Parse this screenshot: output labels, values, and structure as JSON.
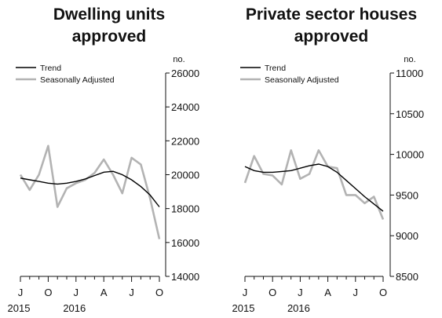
{
  "chart_data": [
    {
      "type": "line",
      "title_lines": [
        "Dwelling units",
        "approved"
      ],
      "unit": "no.",
      "ylim": [
        14000,
        26000
      ],
      "yticks": [
        26000,
        24000,
        22000,
        20000,
        18000,
        16000,
        14000
      ],
      "xticks": [
        {
          "label": "J",
          "year": "2015",
          "index": 0
        },
        {
          "label": "O",
          "year": "",
          "index": 3
        },
        {
          "label": "J",
          "year": "2016",
          "index": 6
        },
        {
          "label": "A",
          "year": "",
          "index": 9
        },
        {
          "label": "J",
          "year": "",
          "index": 12
        },
        {
          "label": "O",
          "year": "",
          "index": 15
        }
      ],
      "legend": [
        "Trend",
        "Seasonally Adjusted"
      ],
      "legend_position": "top-left",
      "series": [
        {
          "name": "Trend",
          "values": [
            19800,
            19700,
            19600,
            19500,
            19450,
            19500,
            19600,
            19750,
            19950,
            20150,
            20200,
            20000,
            19700,
            19300,
            18800,
            18100
          ]
        },
        {
          "name": "Seasonally Adjusted",
          "values": [
            20000,
            19100,
            20000,
            21700,
            18100,
            19200,
            19500,
            19700,
            20100,
            20900,
            20000,
            18900,
            21000,
            20600,
            18600,
            16200
          ]
        }
      ],
      "colors": {
        "Trend": "#000000",
        "Seasonally Adjusted": "#b3b3b3"
      }
    },
    {
      "type": "line",
      "title_lines": [
        "Private sector houses",
        "approved"
      ],
      "unit": "no.",
      "ylim": [
        8500,
        11000
      ],
      "yticks": [
        11000,
        10500,
        10000,
        9500,
        9000,
        8500
      ],
      "xticks": [
        {
          "label": "J",
          "year": "2015",
          "index": 0
        },
        {
          "label": "O",
          "year": "",
          "index": 3
        },
        {
          "label": "J",
          "year": "2016",
          "index": 6
        },
        {
          "label": "A",
          "year": "",
          "index": 9
        },
        {
          "label": "J",
          "year": "",
          "index": 12
        },
        {
          "label": "O",
          "year": "",
          "index": 15
        }
      ],
      "legend": [
        "Trend",
        "Seasonally Adjusted"
      ],
      "legend_position": "top-left",
      "series": [
        {
          "name": "Trend",
          "values": [
            9850,
            9800,
            9780,
            9780,
            9790,
            9800,
            9830,
            9860,
            9880,
            9850,
            9780,
            9680,
            9580,
            9480,
            9390,
            9300
          ]
        },
        {
          "name": "Seasonally Adjusted",
          "values": [
            9650,
            9980,
            9760,
            9740,
            9630,
            10050,
            9700,
            9760,
            10050,
            9850,
            9830,
            9500,
            9500,
            9400,
            9480,
            9200
          ]
        }
      ],
      "colors": {
        "Trend": "#000000",
        "Seasonally Adjusted": "#b3b3b3"
      }
    }
  ]
}
